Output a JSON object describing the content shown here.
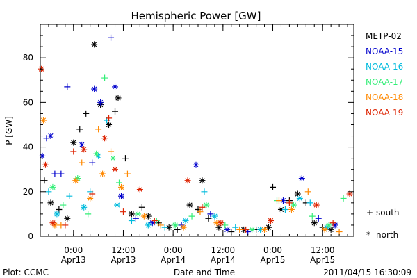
{
  "chart_data": {
    "type": "scatter",
    "title": "Hemispheric Power [GW]",
    "xlabel": "Date and Time",
    "ylabel": "P [GW]",
    "ylim": [
      0,
      95
    ],
    "xlim": [
      "2011-04-12T16:00",
      "2011-04-15T19:30"
    ],
    "yticks": [
      0,
      20,
      40,
      60,
      80
    ],
    "xticks": [
      {
        "time": "2011-04-13T00:00",
        "line1": "0:00",
        "line2": "Apr13"
      },
      {
        "time": "2011-04-13T12:00",
        "line1": "12:00",
        "line2": "Apr13"
      },
      {
        "time": "2011-04-14T00:00",
        "line1": "0:00",
        "line2": "Apr14"
      },
      {
        "time": "2011-04-14T12:00",
        "line1": "12:00",
        "line2": "Apr14"
      },
      {
        "time": "2011-04-15T00:00",
        "line1": "0:00",
        "line2": "Apr15"
      },
      {
        "time": "2011-04-15T12:00",
        "line1": "12:00",
        "line2": "Apr15"
      }
    ],
    "grid": false,
    "legend_position": "right",
    "marker_legend": [
      {
        "symbol": "+",
        "label": "south"
      },
      {
        "symbol": "*",
        "label": "north"
      }
    ],
    "series": [
      {
        "name": "METP-02",
        "color": "#000000",
        "points": [
          [
            "2011-04-12T17:00",
            25,
            "+"
          ],
          [
            "2011-04-12T18:30",
            15,
            "*"
          ],
          [
            "2011-04-12T20:30",
            12,
            "+"
          ],
          [
            "2011-04-12T22:30",
            8,
            "*"
          ],
          [
            "2011-04-13T00:00",
            42,
            "*"
          ],
          [
            "2011-04-13T01:30",
            48,
            "+"
          ],
          [
            "2011-04-13T03:00",
            55,
            "+"
          ],
          [
            "2011-04-13T05:00",
            86,
            "*"
          ],
          [
            "2011-04-13T06:30",
            59,
            "*"
          ],
          [
            "2011-04-13T08:30",
            50,
            "*"
          ],
          [
            "2011-04-13T10:00",
            56,
            "+"
          ],
          [
            "2011-04-13T10:45",
            62,
            "*"
          ],
          [
            "2011-04-13T12:30",
            35,
            "+"
          ],
          [
            "2011-04-13T14:00",
            10,
            "*"
          ],
          [
            "2011-04-13T16:30",
            13,
            "+"
          ],
          [
            "2011-04-13T18:00",
            9,
            "*"
          ],
          [
            "2011-04-13T20:30",
            6,
            "+"
          ],
          [
            "2011-04-13T23:00",
            4,
            "*"
          ],
          [
            "2011-04-14T01:00",
            3,
            "+"
          ],
          [
            "2011-04-14T04:00",
            14,
            "*"
          ],
          [
            "2011-04-14T06:00",
            12,
            "+"
          ],
          [
            "2011-04-14T07:00",
            25,
            "*"
          ],
          [
            "2011-04-14T08:30",
            8,
            "+"
          ],
          [
            "2011-04-14T11:00",
            4,
            "*"
          ],
          [
            "2011-04-14T14:00",
            2,
            "+"
          ],
          [
            "2011-04-14T17:00",
            3,
            "*"
          ],
          [
            "2011-04-14T20:00",
            3,
            "+"
          ],
          [
            "2011-04-14T23:00",
            4,
            "*"
          ],
          [
            "2011-04-15T00:00",
            22,
            "+"
          ],
          [
            "2011-04-15T02:00",
            12,
            "*"
          ],
          [
            "2011-04-15T04:00",
            16,
            "+"
          ],
          [
            "2011-04-15T06:00",
            19,
            "*"
          ],
          [
            "2011-04-15T08:00",
            15,
            "+"
          ],
          [
            "2011-04-15T10:00",
            6,
            "*"
          ],
          [
            "2011-04-15T12:00",
            4,
            "+"
          ],
          [
            "2011-04-15T14:00",
            3,
            "*"
          ]
        ]
      },
      {
        "name": "NOAA-15",
        "color": "#0000cc",
        "points": [
          [
            "2011-04-12T16:30",
            36,
            "*"
          ],
          [
            "2011-04-12T17:30",
            44,
            "+"
          ],
          [
            "2011-04-12T18:30",
            45,
            "*"
          ],
          [
            "2011-04-12T19:30",
            28,
            "+"
          ],
          [
            "2011-04-12T21:00",
            28,
            "+"
          ],
          [
            "2011-04-12T22:30",
            67,
            "+"
          ],
          [
            "2011-04-13T02:00",
            41,
            "*"
          ],
          [
            "2011-04-13T04:30",
            33,
            "+"
          ],
          [
            "2011-04-13T05:00",
            66,
            "*"
          ],
          [
            "2011-04-13T06:30",
            60,
            "*"
          ],
          [
            "2011-04-13T09:00",
            89,
            "+"
          ],
          [
            "2011-04-13T10:00",
            67,
            "*"
          ],
          [
            "2011-04-13T11:30",
            18,
            "*"
          ],
          [
            "2011-04-13T15:00",
            8,
            "+"
          ],
          [
            "2011-04-13T19:00",
            6,
            "*"
          ],
          [
            "2011-04-14T02:00",
            5,
            "+"
          ],
          [
            "2011-04-14T05:30",
            32,
            "*"
          ],
          [
            "2011-04-14T09:00",
            10,
            "+"
          ],
          [
            "2011-04-14T13:00",
            3,
            "*"
          ],
          [
            "2011-04-14T18:00",
            2,
            "+"
          ],
          [
            "2011-04-15T02:30",
            16,
            "*"
          ],
          [
            "2011-04-15T07:00",
            26,
            "*"
          ],
          [
            "2011-04-15T11:00",
            8,
            "+"
          ],
          [
            "2011-04-15T15:00",
            5,
            "*"
          ]
        ]
      },
      {
        "name": "NOAA-16",
        "color": "#00bbdd",
        "points": [
          [
            "2011-04-12T18:00",
            20,
            "+"
          ],
          [
            "2011-04-12T20:00",
            10,
            "*"
          ],
          [
            "2011-04-12T23:00",
            18,
            "+"
          ],
          [
            "2011-04-13T02:30",
            13,
            "*"
          ],
          [
            "2011-04-13T04:00",
            20,
            "+"
          ],
          [
            "2011-04-13T06:00",
            36,
            "*"
          ],
          [
            "2011-04-13T08:00",
            52,
            "+"
          ],
          [
            "2011-04-13T10:30",
            14,
            "*"
          ],
          [
            "2011-04-13T14:00",
            7,
            "+"
          ],
          [
            "2011-04-13T18:00",
            5,
            "*"
          ],
          [
            "2011-04-13T22:00",
            4,
            "+"
          ],
          [
            "2011-04-14T03:00",
            7,
            "*"
          ],
          [
            "2011-04-14T07:30",
            20,
            "+"
          ],
          [
            "2011-04-14T10:00",
            9,
            "*"
          ],
          [
            "2011-04-14T15:00",
            4,
            "+"
          ],
          [
            "2011-04-14T21:00",
            3,
            "*"
          ],
          [
            "2011-04-15T03:00",
            12,
            "+"
          ],
          [
            "2011-04-15T06:30",
            17,
            "*"
          ],
          [
            "2011-04-15T09:00",
            15,
            "+"
          ],
          [
            "2011-04-15T13:00",
            4,
            "*"
          ]
        ]
      },
      {
        "name": "NOAA-17",
        "color": "#33ee77",
        "points": [
          [
            "2011-04-12T19:00",
            22,
            "*"
          ],
          [
            "2011-04-12T21:30",
            14,
            "+"
          ],
          [
            "2011-04-13T01:00",
            26,
            "*"
          ],
          [
            "2011-04-13T03:30",
            10,
            "+"
          ],
          [
            "2011-04-13T05:30",
            37,
            "*"
          ],
          [
            "2011-04-13T07:30",
            71,
            "+"
          ],
          [
            "2011-04-13T09:30",
            35,
            "*"
          ],
          [
            "2011-04-13T11:00",
            24,
            "+"
          ],
          [
            "2011-04-13T15:30",
            10,
            "*"
          ],
          [
            "2011-04-13T20:00",
            7,
            "+"
          ],
          [
            "2011-04-14T00:30",
            5,
            "*"
          ],
          [
            "2011-04-14T04:30",
            9,
            "+"
          ],
          [
            "2011-04-14T08:00",
            14,
            "*"
          ],
          [
            "2011-04-14T12:30",
            5,
            "+"
          ],
          [
            "2011-04-14T19:00",
            3,
            "*"
          ],
          [
            "2011-04-15T01:00",
            16,
            "+"
          ],
          [
            "2011-04-15T05:00",
            14,
            "*"
          ],
          [
            "2011-04-15T09:30",
            9,
            "+"
          ],
          [
            "2011-04-15T13:30",
            5,
            "*"
          ],
          [
            "2011-04-15T17:00",
            17,
            "+"
          ]
        ]
      },
      {
        "name": "NOAA-18",
        "color": "#ff8800",
        "points": [
          [
            "2011-04-12T16:45",
            52,
            "*"
          ],
          [
            "2011-04-12T19:30",
            5,
            "*"
          ],
          [
            "2011-04-12T21:00",
            5,
            "+"
          ],
          [
            "2011-04-13T00:30",
            25,
            "*"
          ],
          [
            "2011-04-13T02:00",
            33,
            "+"
          ],
          [
            "2011-04-13T04:00",
            17,
            "*"
          ],
          [
            "2011-04-13T06:00",
            48,
            "+"
          ],
          [
            "2011-04-13T07:00",
            28,
            "*"
          ],
          [
            "2011-04-13T09:00",
            38,
            "+"
          ],
          [
            "2011-04-13T11:30",
            22,
            "*"
          ],
          [
            "2011-04-13T13:00",
            28,
            "+"
          ],
          [
            "2011-04-13T17:00",
            9,
            "*"
          ],
          [
            "2011-04-13T21:00",
            5,
            "+"
          ],
          [
            "2011-04-14T02:30",
            4,
            "*"
          ],
          [
            "2011-04-14T06:30",
            11,
            "+"
          ],
          [
            "2011-04-14T10:30",
            6,
            "*"
          ],
          [
            "2011-04-14T16:00",
            3,
            "+"
          ],
          [
            "2011-04-14T22:00",
            3,
            "*"
          ],
          [
            "2011-04-15T01:30",
            16,
            "+"
          ],
          [
            "2011-04-15T04:30",
            12,
            "*"
          ],
          [
            "2011-04-15T08:30",
            20,
            "+"
          ],
          [
            "2011-04-15T12:30",
            3,
            "*"
          ],
          [
            "2011-04-15T16:00",
            2,
            "+"
          ]
        ]
      },
      {
        "name": "NOAA-19",
        "color": "#dd2200",
        "points": [
          [
            "2011-04-12T16:15",
            75,
            "*"
          ],
          [
            "2011-04-12T17:15",
            32,
            "*"
          ],
          [
            "2011-04-12T19:00",
            6,
            "*"
          ],
          [
            "2011-04-12T22:00",
            5,
            "+"
          ],
          [
            "2011-04-13T00:00",
            38,
            "+"
          ],
          [
            "2011-04-13T02:30",
            39,
            "*"
          ],
          [
            "2011-04-13T04:30",
            19,
            "+"
          ],
          [
            "2011-04-13T07:30",
            44,
            "*"
          ],
          [
            "2011-04-13T08:30",
            53,
            "+"
          ],
          [
            "2011-04-13T10:00",
            30,
            "*"
          ],
          [
            "2011-04-13T12:00",
            11,
            "+"
          ],
          [
            "2011-04-13T16:00",
            21,
            "*"
          ],
          [
            "2011-04-13T19:30",
            7,
            "+"
          ],
          [
            "2011-04-14T03:30",
            25,
            "*"
          ],
          [
            "2011-04-14T07:00",
            13,
            "+"
          ],
          [
            "2011-04-14T11:30",
            6,
            "*"
          ],
          [
            "2011-04-14T17:30",
            3,
            "+"
          ],
          [
            "2011-04-14T23:30",
            7,
            "*"
          ],
          [
            "2011-04-15T04:00",
            15,
            "+"
          ],
          [
            "2011-04-15T10:30",
            14,
            "*"
          ],
          [
            "2011-04-15T14:30",
            6,
            "+"
          ],
          [
            "2011-04-15T18:30",
            19,
            "*"
          ]
        ]
      }
    ]
  },
  "footer": {
    "plot_credit": "Plot: CCMC",
    "timestamp": "2011/04/15 16:30:09"
  }
}
